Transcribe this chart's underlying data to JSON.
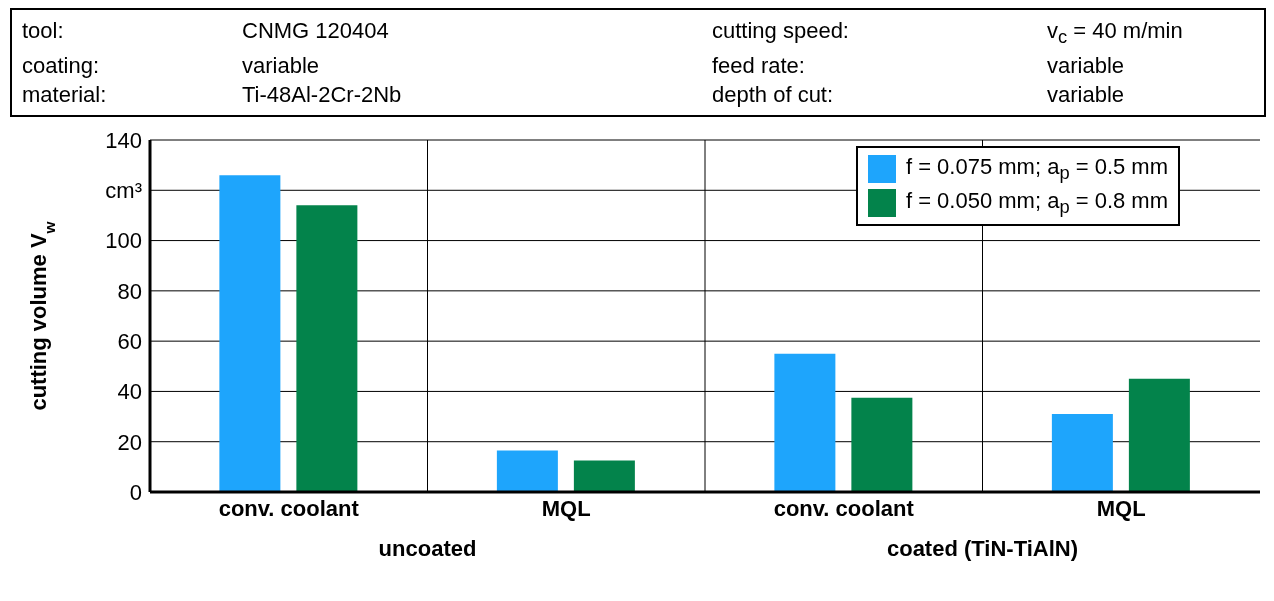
{
  "chart_data": {
    "type": "bar",
    "ylabel": "cutting volume V$_{w}$",
    "categories": [
      "conv. coolant",
      "MQL",
      "conv. coolant",
      "MQL"
    ],
    "series": [
      {
        "name": "f = 0.075 mm; a$_{p}$ = 0.5 mm",
        "color": "#1ea5fc",
        "values": [
          126,
          16.5,
          55,
          31
        ]
      },
      {
        "name": "f = 0.050 mm; a$_{p}$ = 0.8 mm",
        "color": "#03834b",
        "values": [
          114,
          12.5,
          37.5,
          45
        ]
      }
    ],
    "ylim": [
      0,
      140
    ],
    "yticks": [
      0,
      20,
      40,
      60,
      80,
      100,
      {
        "value": 120,
        "label": "cm³"
      },
      140
    ],
    "grid": true,
    "legend": "top right",
    "annotations": [
      "tool:",
      "CNMG 120404",
      "cutting speed:",
      "v$_{c}$ = 40 m/min",
      "coating:",
      "variable",
      "feed rate:",
      "variable",
      "material:",
      "Ti-48Al-2Cr-2Nb",
      "depth of cut:",
      "variable",
      "uncoated",
      "coated (TiN-TiAlN)"
    ]
  }
}
